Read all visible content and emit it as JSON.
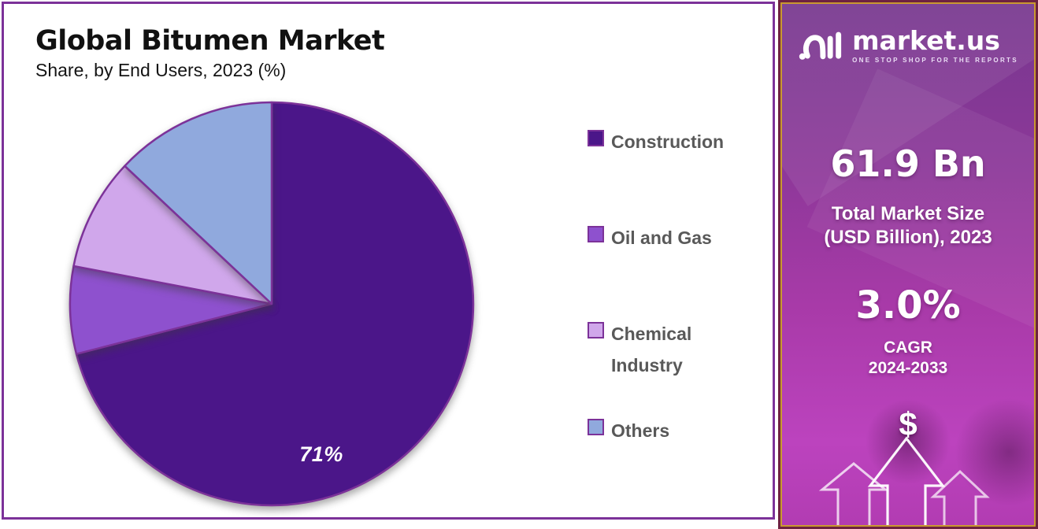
{
  "colors": {
    "frame_border": "#7C3299",
    "pie_stroke": "#7C3299",
    "legend_text": "#595959",
    "sidebar_outer_border": "#6E2240",
    "sidebar_inner_border": "#C9992F",
    "sidebar_gradient_top": "#77378F",
    "sidebar_gradient_bottom": "#BC43BE"
  },
  "chart_data": {
    "type": "pie",
    "title": "Global Bitumen Market",
    "subtitle": "Share, by End Users, 2023 (%)",
    "categories": [
      "Construction",
      "Oil and Gas",
      "Chemical Industry",
      "Others"
    ],
    "values": [
      71,
      7,
      9,
      13
    ],
    "slice_colors": [
      "#4B1689",
      "#8E51CE",
      "#D0A7EB",
      "#90A9DD"
    ],
    "unit": "%",
    "start_angle_deg": 0,
    "direction": "clockwise",
    "shown_label": {
      "slice": "Construction",
      "text": "71%"
    },
    "legend_position": "right"
  },
  "sidebar": {
    "brand": "market.us",
    "tagline": "ONE STOP SHOP FOR THE REPORTS",
    "market_size": {
      "value": "61.9 Bn",
      "label_line1": "Total Market Size",
      "label_line2": "(USD Billion), 2023"
    },
    "cagr": {
      "value": "3.0%",
      "label_line1": "CAGR",
      "label_line2": "2024-2033"
    },
    "dollar_symbol": "$"
  }
}
